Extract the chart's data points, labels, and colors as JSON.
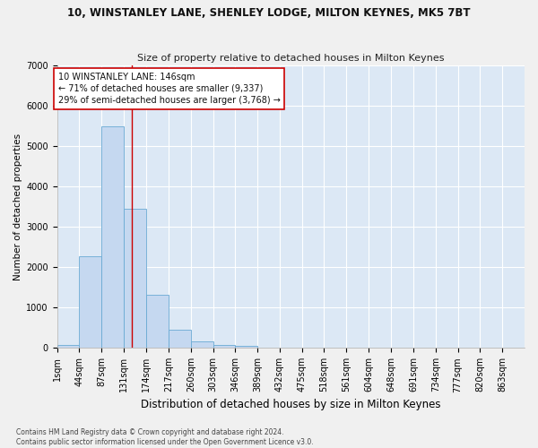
{
  "title": "10, WINSTANLEY LANE, SHENLEY LODGE, MILTON KEYNES, MK5 7BT",
  "subtitle": "Size of property relative to detached houses in Milton Keynes",
  "xlabel": "Distribution of detached houses by size in Milton Keynes",
  "ylabel": "Number of detached properties",
  "annotation_line1": "10 WINSTANLEY LANE: 146sqm",
  "annotation_line2": "← 71% of detached houses are smaller (9,337)",
  "annotation_line3": "29% of semi-detached houses are larger (3,768) →",
  "footer_line1": "Contains HM Land Registry data © Crown copyright and database right 2024.",
  "footer_line2": "Contains public sector information licensed under the Open Government Licence v3.0.",
  "bar_color": "#c5d8f0",
  "bar_edge_color": "#6aaad4",
  "background_color": "#dce8f5",
  "grid_color": "#ffffff",
  "fig_background": "#f0f0f0",
  "red_line_x": 146,
  "annotation_box_color": "#cc0000",
  "x_tick_labels": [
    "1sqm",
    "44sqm",
    "87sqm",
    "131sqm",
    "174sqm",
    "217sqm",
    "260sqm",
    "303sqm",
    "346sqm",
    "389sqm",
    "432sqm",
    "475sqm",
    "518sqm",
    "561sqm",
    "604sqm",
    "648sqm",
    "691sqm",
    "734sqm",
    "777sqm",
    "820sqm",
    "863sqm"
  ],
  "bin_edges": [
    1,
    44,
    87,
    131,
    174,
    217,
    260,
    303,
    346,
    389,
    432,
    475,
    518,
    561,
    604,
    648,
    691,
    734,
    777,
    820,
    863,
    906
  ],
  "bar_heights": [
    80,
    2280,
    5480,
    3440,
    1320,
    460,
    155,
    80,
    50,
    0,
    0,
    0,
    0,
    0,
    0,
    0,
    0,
    0,
    0,
    0,
    0
  ],
  "ylim": [
    0,
    7000
  ],
  "yticks": [
    0,
    1000,
    2000,
    3000,
    4000,
    5000,
    6000,
    7000
  ],
  "title_fontsize": 8.5,
  "subtitle_fontsize": 8.0,
  "xlabel_fontsize": 8.5,
  "ylabel_fontsize": 7.5,
  "tick_fontsize": 7.0,
  "annotation_fontsize": 7.0,
  "footer_fontsize": 5.5
}
